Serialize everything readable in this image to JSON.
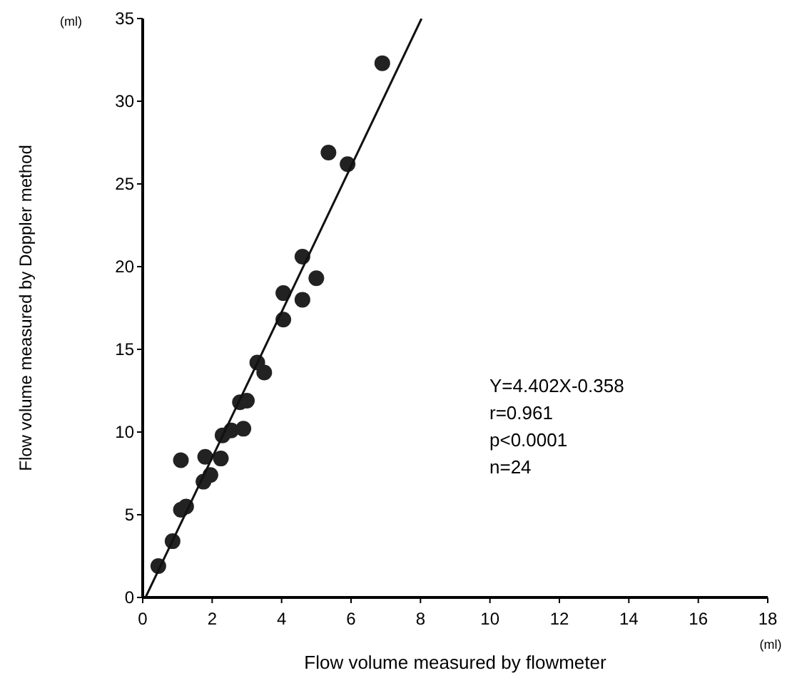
{
  "chart_data": {
    "type": "scatter",
    "xlabel": "Flow volume measured by flowmeter",
    "ylabel": "Flow volume measured by Doppler method",
    "xlim": [
      0,
      18
    ],
    "xticks": [
      0,
      2,
      4,
      6,
      8,
      10,
      12,
      14,
      16,
      18
    ],
    "ylim": [
      0,
      35
    ],
    "yticks": [
      0,
      5,
      10,
      15,
      20,
      25,
      30,
      35
    ],
    "grid": false,
    "marker": "circle",
    "series": [
      {
        "color": "#222222",
        "x": [
          0.45,
          0.86,
          1.1,
          1.25,
          1.1,
          1.8,
          1.75,
          1.95,
          2.25,
          2.3,
          2.55,
          2.9,
          2.8,
          3.0,
          3.3,
          3.5,
          4.05,
          4.05,
          4.6,
          4.6,
          5.0,
          5.35,
          5.9,
          6.9
        ],
        "values": [
          1.9,
          3.4,
          5.3,
          5.5,
          8.3,
          8.5,
          7.0,
          7.4,
          8.4,
          9.8,
          10.1,
          10.2,
          11.8,
          11.9,
          14.2,
          13.6,
          16.8,
          18.4,
          18.0,
          20.6,
          19.3,
          26.9,
          26.2,
          32.3
        ]
      },
      {
        "type": "line",
        "color": "#111111",
        "x": [
          0.081,
          8.03
        ],
        "values": [
          0,
          35
        ],
        "marker": "none"
      }
    ],
    "annotations": [
      "(ml)",
      "(ml)",
      "Y=4.402X-0.358",
      "r=0.961",
      "p<0.0001",
      "n=24"
    ]
  }
}
